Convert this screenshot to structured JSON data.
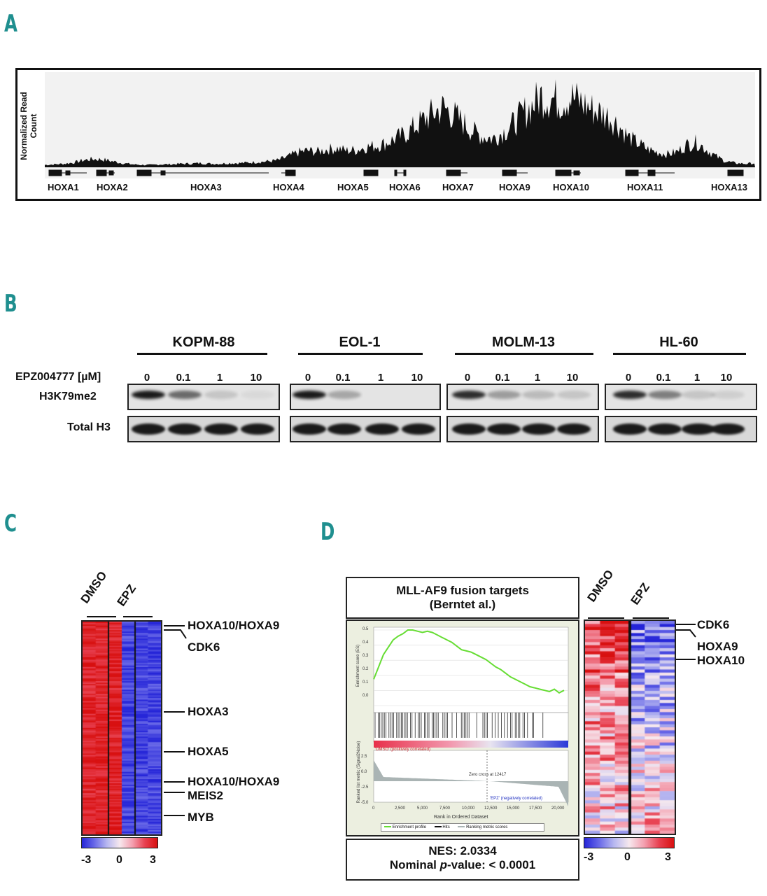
{
  "panels": {
    "a": "A",
    "b": "B",
    "c": "C",
    "d": "D"
  },
  "panel_a": {
    "y_label": "Normalized Read\nCount",
    "genes": [
      "HOXA1",
      "HOXA2",
      "HOXA3",
      "HOXA4",
      "HOXA5",
      "HOXA6",
      "HOXA7",
      "HOXA9",
      "HOXA10",
      "HOXA11",
      "HOXA13"
    ],
    "coverage_profile": [
      4,
      5,
      6,
      8,
      12,
      14,
      13,
      10,
      7,
      5,
      4,
      4,
      5,
      5,
      6,
      6,
      7,
      6,
      6,
      7,
      7,
      8,
      9,
      10,
      12,
      18,
      25,
      28,
      26,
      30,
      32,
      28,
      29,
      34,
      36,
      40,
      48,
      55,
      68,
      80,
      92,
      100,
      88,
      75,
      60,
      52,
      48,
      58,
      70,
      88,
      102,
      120,
      116,
      112,
      118,
      110,
      100,
      92,
      85,
      70,
      50,
      40,
      30,
      25,
      22,
      26,
      38,
      42,
      30,
      18,
      10,
      7,
      6,
      7
    ]
  },
  "panel_b": {
    "treatment_label": "EPZ004777 [µM]",
    "rows": [
      "H3K79me2",
      "Total H3"
    ],
    "cell_lines": [
      {
        "name": "KOPM-88",
        "doses": [
          "0",
          "0.1",
          "1",
          "10"
        ],
        "h3k79_signal": [
          1.0,
          0.6,
          0.15,
          0.05
        ]
      },
      {
        "name": "EOL-1",
        "doses": [
          "0",
          "0.1",
          "1",
          "10"
        ],
        "h3k79_signal": [
          1.0,
          0.3,
          0.0,
          0.0
        ]
      },
      {
        "name": "MOLM-13",
        "doses": [
          "0",
          "0.1",
          "1",
          "10"
        ],
        "h3k79_signal": [
          0.9,
          0.35,
          0.2,
          0.15
        ]
      },
      {
        "name": "HL-60",
        "doses": [
          "0",
          "0.1",
          "1",
          "10"
        ],
        "h3k79_signal": [
          0.9,
          0.5,
          0.15,
          0.1
        ]
      }
    ]
  },
  "panel_c": {
    "columns": [
      "DMSO",
      "EPZ"
    ],
    "gene_labels": [
      "HOXA10/HOXA9",
      "CDK6",
      "HOXA3",
      "HOXA5",
      "HOXA10/HOXA9",
      "MEIS2",
      "MYB"
    ],
    "scale": {
      "min": "-3",
      "mid": "0",
      "max": "3"
    }
  },
  "panel_d": {
    "title_line1": "MLL-AF9 fusion targets",
    "title_line2": "(Berntet al.)",
    "nes": "NES: 2.0334",
    "pval_prefix": "Nominal ",
    "pval_italic": "p",
    "pval_suffix": "-value: < 0.0001",
    "gsea": {
      "es_label": "Enrichment score (ES)",
      "rank_label": "Ranked list metric (Signal2Noise)",
      "x_label": "Rank in Ordered Dataset",
      "es_ticks": [
        "0.5",
        "0.4",
        "0.3",
        "0.2",
        "0.1",
        "0.0"
      ],
      "rank_ticks": [
        "2.5",
        "0.0",
        "-2.5",
        "-5.0"
      ],
      "x_ticks": [
        "0",
        "2,500",
        "5,000",
        "7,500",
        "10,000",
        "12,500",
        "15,000",
        "17,500",
        "20,000"
      ],
      "pos_label": "'DMSO' (positively correlated)",
      "neg_label": "'EPZ' (negatively correlated)",
      "zero_cross": "Zero cross at 12417",
      "legend": [
        "Enrichment profile",
        "Hits",
        "Ranking metric scores"
      ]
    },
    "heatmap_columns": [
      "DMSO",
      "EPZ"
    ],
    "gene_labels": [
      "CDK6",
      "HOXA9",
      "HOXA10"
    ],
    "scale": {
      "min": "-3",
      "mid": "0",
      "max": "3"
    }
  }
}
